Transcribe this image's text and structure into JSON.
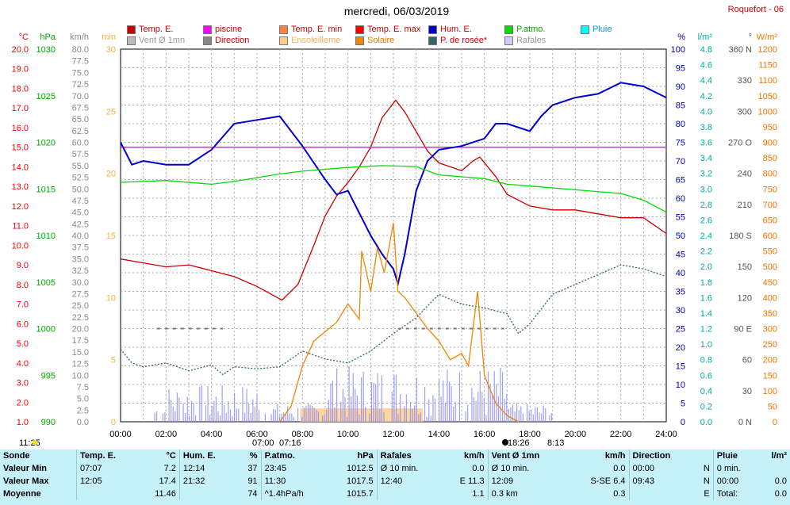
{
  "header": {
    "title": "mercredi, 06/03/2019",
    "station": "Roquefort - 06"
  },
  "legend": [
    {
      "label": "Temp. E.",
      "color": "#cc0000"
    },
    {
      "label": "piscine",
      "color": "#ff00ff"
    },
    {
      "label": "Temp. E. min",
      "color": "#ff8040"
    },
    {
      "label": "Temp. E. max",
      "color": "#ff0000"
    },
    {
      "label": "Hum. E.",
      "color": "#0000cc"
    },
    {
      "label": "P.atmo.",
      "color": "#00dd00"
    },
    {
      "label": "Pluie",
      "color": "#00ffff"
    },
    {
      "label": "Vent Ø 1mn",
      "color": "#bbbbbb"
    },
    {
      "label": "Direction",
      "color": "#888888"
    },
    {
      "label": "Ensoleilleme",
      "color": "#ffcc88"
    },
    {
      "label": "Solaire",
      "color": "#ee8800"
    },
    {
      "label": "P. de rosée*",
      "color": "#336666"
    },
    {
      "label": "Rafales",
      "color": "#ccccff"
    }
  ],
  "axes": {
    "temp": {
      "unit": "°C",
      "ticks": [
        "20.0",
        "19.0",
        "18.0",
        "17.0",
        "16.0",
        "15.0",
        "14.0",
        "13.0",
        "12.0",
        "11.0",
        "10.0",
        "9.0",
        "8.0",
        "7.0",
        "6.0",
        "5.0",
        "4.0",
        "3.0",
        "2.0",
        "1.0"
      ],
      "color": "#ff0000"
    },
    "press": {
      "unit": "hPa",
      "ticks": [
        "1030",
        "1025",
        "1020",
        "1015",
        "1010",
        "1005",
        "1000",
        "995",
        "990"
      ],
      "color": "#00aa00"
    },
    "wind": {
      "unit": "km/h",
      "ticks": [
        "80.0",
        "77.5",
        "75.0",
        "72.5",
        "70.0",
        "67.5",
        "65.0",
        "62.5",
        "60.0",
        "57.5",
        "55.0",
        "52.5",
        "50.0",
        "47.5",
        "45.0",
        "42.5",
        "40.0",
        "37.5",
        "35.0",
        "32.5",
        "30.0",
        "27.5",
        "25.0",
        "22.5",
        "20.0",
        "17.5",
        "15.0",
        "12.5",
        "10.0",
        "7.5",
        "5.0",
        "2.5",
        "0.0"
      ],
      "color": "#999999"
    },
    "min": {
      "unit": "min",
      "ticks": [
        "30",
        "25",
        "20",
        "15",
        "10",
        "5",
        "0"
      ],
      "color": "#ffcc66"
    },
    "hum": {
      "unit": "%",
      "ticks": [
        "100",
        "95",
        "90",
        "85",
        "80",
        "75",
        "70",
        "65",
        "60",
        "55",
        "50",
        "45",
        "40",
        "35",
        "30",
        "25",
        "20",
        "15",
        "10",
        "5",
        "0"
      ],
      "color": "#0000aa"
    },
    "rain": {
      "unit": "l/m²",
      "ticks": [
        "4.8",
        "4.6",
        "4.4",
        "4.2",
        "4.0",
        "3.8",
        "3.6",
        "3.4",
        "3.2",
        "3.0",
        "2.8",
        "2.6",
        "2.4",
        "2.2",
        "2.0",
        "1.8",
        "1.6",
        "1.4",
        "1.2",
        "1.0",
        "0.8",
        "0.6",
        "0.4",
        "0.2",
        "0.0"
      ],
      "color": "#00bbbb"
    },
    "dir": {
      "unit": "°",
      "ticks": [
        "360 N",
        "330",
        "300",
        "270 O",
        "240",
        "210",
        "180 S",
        "150",
        "120",
        "90 E",
        "60",
        "30",
        "0 N"
      ],
      "color": "#666666"
    },
    "solar": {
      "unit": "W/m²",
      "ticks": [
        "1200",
        "1150",
        "1100",
        "1050",
        "1000",
        "950",
        "900",
        "850",
        "800",
        "750",
        "700",
        "650",
        "600",
        "550",
        "500",
        "450",
        "400",
        "350",
        "300",
        "250",
        "200",
        "150",
        "100",
        "50",
        "0"
      ],
      "color": "#ee7700"
    },
    "x": {
      "ticks": [
        "00:00",
        "02:00",
        "04:00",
        "06:00",
        "08:00",
        "10:00",
        "12:00",
        "14:00",
        "16:00",
        "18:00",
        "20:00",
        "22:00",
        "24:00"
      ]
    }
  },
  "events": {
    "moonrise": "11:25",
    "sunrise": "07:00",
    "sunrise2": "07:16",
    "sunset": "18:26",
    "moonset": "8:13"
  },
  "chart_data": {
    "type": "line",
    "x_unit": "hour",
    "series": [
      {
        "name": "Temp. E.",
        "axis": "temp",
        "color": "#cc0000",
        "points": [
          [
            0,
            9.3
          ],
          [
            1,
            9.1
          ],
          [
            2,
            8.9
          ],
          [
            3,
            9.0
          ],
          [
            4,
            8.7
          ],
          [
            5,
            8.4
          ],
          [
            6,
            7.9
          ],
          [
            7.1,
            7.2
          ],
          [
            7.8,
            8.0
          ],
          [
            8.5,
            10.0
          ],
          [
            9,
            11.5
          ],
          [
            9.5,
            12.5
          ],
          [
            10,
            13.2
          ],
          [
            10.5,
            14.0
          ],
          [
            11,
            15.0
          ],
          [
            11.5,
            16.5
          ],
          [
            12.1,
            17.4
          ],
          [
            12.5,
            16.8
          ],
          [
            13,
            15.8
          ],
          [
            13.5,
            14.8
          ],
          [
            14,
            14.2
          ],
          [
            14.5,
            14.0
          ],
          [
            15,
            13.8
          ],
          [
            15.5,
            14.3
          ],
          [
            15.8,
            14.5
          ],
          [
            16.5,
            13.5
          ],
          [
            17,
            12.6
          ],
          [
            18,
            12.0
          ],
          [
            19,
            11.8
          ],
          [
            20,
            11.8
          ],
          [
            21,
            11.6
          ],
          [
            22,
            11.4
          ],
          [
            23,
            11.4
          ],
          [
            24,
            10.6
          ]
        ]
      },
      {
        "name": "piscine",
        "axis": "temp",
        "color": "#ff00ff",
        "points": [
          [
            0,
            15.0
          ],
          [
            24,
            15.0
          ]
        ]
      },
      {
        "name": "Hum. E.",
        "axis": "hum",
        "color": "#0000cc",
        "points": [
          [
            0,
            75
          ],
          [
            0.5,
            69
          ],
          [
            1,
            70
          ],
          [
            2,
            69
          ],
          [
            3,
            69
          ],
          [
            4,
            73
          ],
          [
            5,
            80
          ],
          [
            6,
            81
          ],
          [
            7,
            82
          ],
          [
            8,
            74
          ],
          [
            9,
            65
          ],
          [
            9.5,
            61
          ],
          [
            10,
            62
          ],
          [
            11,
            50
          ],
          [
            11.5,
            45
          ],
          [
            12,
            41
          ],
          [
            12.2,
            37
          ],
          [
            12.5,
            45
          ],
          [
            13,
            62
          ],
          [
            13.5,
            70
          ],
          [
            14,
            73
          ],
          [
            15,
            74
          ],
          [
            16,
            76
          ],
          [
            16.5,
            80
          ],
          [
            17,
            80
          ],
          [
            18,
            78
          ],
          [
            18.5,
            82
          ],
          [
            19,
            85
          ],
          [
            20,
            87
          ],
          [
            21,
            88
          ],
          [
            22,
            91
          ],
          [
            23,
            90
          ],
          [
            24,
            87
          ]
        ]
      },
      {
        "name": "P.atmo.",
        "axis": "press",
        "color": "#00dd00",
        "points": [
          [
            0,
            1015.7
          ],
          [
            2,
            1015.9
          ],
          [
            4,
            1015.5
          ],
          [
            5,
            1015.8
          ],
          [
            6,
            1016.2
          ],
          [
            7,
            1016.6
          ],
          [
            8,
            1016.9
          ],
          [
            10,
            1017.3
          ],
          [
            11.5,
            1017.5
          ],
          [
            13,
            1017.4
          ],
          [
            14,
            1016.5
          ],
          [
            15,
            1016.3
          ],
          [
            16,
            1016.1
          ],
          [
            17,
            1015.5
          ],
          [
            18,
            1015.3
          ],
          [
            20,
            1014.9
          ],
          [
            22,
            1014.5
          ],
          [
            23,
            1013.8
          ],
          [
            24,
            1012.5
          ]
        ]
      },
      {
        "name": "P. de rosée*",
        "axis": "temp",
        "color": "#336666",
        "points": [
          [
            0,
            4.7
          ],
          [
            0.5,
            4.0
          ],
          [
            1,
            3.8
          ],
          [
            2,
            4.0
          ],
          [
            3,
            3.6
          ],
          [
            4,
            3.9
          ],
          [
            4.5,
            3.4
          ],
          [
            5,
            3.8
          ],
          [
            6,
            3.7
          ],
          [
            7,
            3.8
          ],
          [
            8,
            4.6
          ],
          [
            9,
            4.2
          ],
          [
            10,
            4.0
          ],
          [
            11,
            4.6
          ],
          [
            12,
            5.5
          ],
          [
            13,
            6.3
          ],
          [
            14,
            7.5
          ],
          [
            15,
            7.0
          ],
          [
            16,
            6.8
          ],
          [
            17,
            6.5
          ],
          [
            17.5,
            5.5
          ],
          [
            18,
            6.0
          ],
          [
            19,
            7.5
          ],
          [
            20,
            8.0
          ],
          [
            21,
            8.5
          ],
          [
            22,
            9.0
          ],
          [
            23,
            8.8
          ],
          [
            24,
            8.4
          ]
        ]
      },
      {
        "name": "Solaire",
        "axis": "solar",
        "color": "#ee8800",
        "points": [
          [
            7,
            0
          ],
          [
            7.5,
            50
          ],
          [
            8,
            180
          ],
          [
            8.5,
            260
          ],
          [
            9,
            290
          ],
          [
            9.5,
            320
          ],
          [
            10,
            380
          ],
          [
            10.5,
            330
          ],
          [
            10.6,
            550
          ],
          [
            11,
            420
          ],
          [
            11.3,
            560
          ],
          [
            11.6,
            480
          ],
          [
            12,
            640
          ],
          [
            12.2,
            420
          ],
          [
            12.5,
            400
          ],
          [
            13,
            350
          ],
          [
            13.5,
            300
          ],
          [
            14,
            260
          ],
          [
            14.5,
            200
          ],
          [
            15,
            220
          ],
          [
            15.3,
            180
          ],
          [
            15.7,
            420
          ],
          [
            16,
            150
          ],
          [
            16.5,
            60
          ],
          [
            17,
            20
          ],
          [
            17.5,
            0
          ]
        ]
      }
    ],
    "wind_gusts": {
      "name": "Rafales",
      "axis": "wind",
      "color": "#8888ff"
    }
  },
  "stats": {
    "headers": [
      "Sonde",
      "Temp. E.",
      "°C",
      "Hum. E.",
      "%",
      "P.atmo.",
      "hPa",
      "Rafales",
      "km/h",
      "Vent Ø 1mn",
      "km/h",
      "Direction",
      "",
      "Pluie",
      "l/m²"
    ],
    "rows": [
      {
        "label": "Valeur Min",
        "cells": [
          "07:07",
          "7.2",
          "12:14",
          "37",
          "23:45",
          "1012.5",
          "Ø 10 min.",
          "0.0",
          "Ø 10 min.",
          "0.0",
          "00:00",
          "N",
          "0 min.",
          ""
        ]
      },
      {
        "label": "Valeur Max",
        "cells": [
          "12:05",
          "17.4",
          "21:32",
          "91",
          "11:30",
          "1017.5",
          "12:40",
          "E 11.3",
          "12:09",
          "S-SE 6.4",
          "09:43",
          "N",
          "00:00",
          "0.0"
        ]
      },
      {
        "label": "Moyenne",
        "cells": [
          "",
          "11.46",
          "",
          "74",
          "^1.4hPa/h",
          "1015.7",
          "",
          "1.1",
          "0.3 km",
          "0.3",
          "",
          "E",
          "Total:",
          "0.0"
        ]
      }
    ]
  }
}
